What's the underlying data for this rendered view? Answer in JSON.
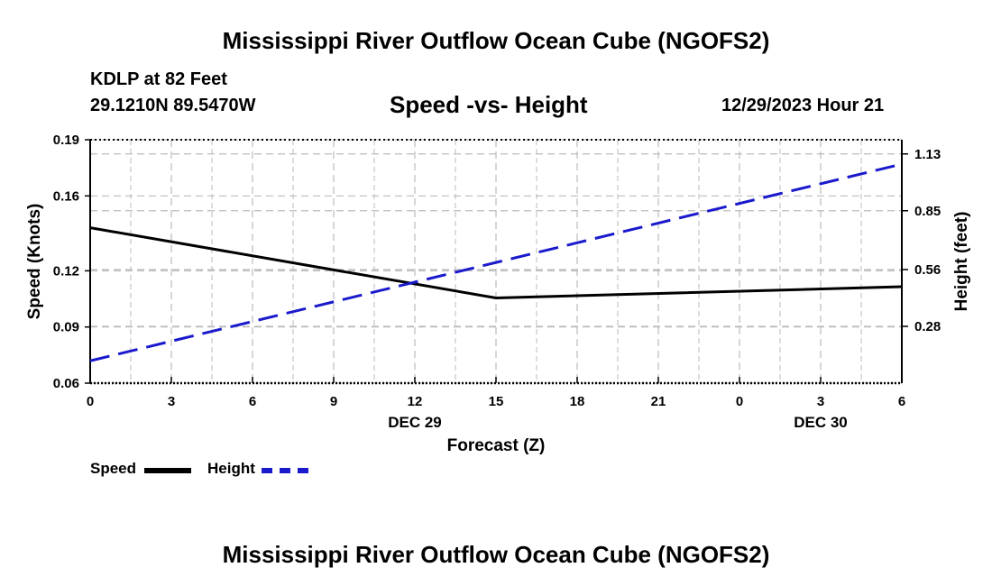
{
  "header": {
    "title": "Mississippi River Outflow Ocean Cube (NGOFS2)",
    "station": "KDLP at 82 Feet",
    "coords": "29.1210N  89.5470W",
    "subtitle": "Speed -vs- Height",
    "datetime": "12/29/2023 Hour 21"
  },
  "footer": {
    "title": "Mississippi River Outflow Ocean Cube (NGOFS2)"
  },
  "legend": {
    "speed_label": "Speed",
    "height_label": "Height"
  },
  "colors": {
    "speed": "#000000",
    "height": "#1a1acc",
    "grid": "#bbbbbb"
  },
  "chart_data": {
    "type": "line",
    "title": "Speed -vs- Height",
    "xlabel": "Forecast (Z)",
    "ylabel": "Speed (Knots)",
    "y2label": "Height (feet)",
    "x_ticks": [
      "0",
      "3",
      "6",
      "9",
      "12",
      "15",
      "18",
      "21",
      "0",
      "3",
      "6"
    ],
    "x_tick_hours": [
      0,
      3,
      6,
      9,
      12,
      15,
      18,
      21,
      24,
      27,
      30
    ],
    "date_labels": [
      {
        "text": "DEC 29",
        "hour": 12
      },
      {
        "text": "DEC 30",
        "hour": 27
      }
    ],
    "xlim": [
      0,
      30
    ],
    "ylim": [
      0.06,
      0.19
    ],
    "y_ticks": [
      0.06,
      0.09,
      0.12,
      0.16,
      0.19
    ],
    "y_tick_labels": [
      "0.06",
      "0.09",
      "0.12",
      "0.16",
      "0.19"
    ],
    "y2lim": [
      0.0,
      1.2
    ],
    "y2_ticks": [
      0.28,
      0.56,
      0.85,
      1.13
    ],
    "y2_tick_labels": [
      "0.28",
      "0.56",
      "0.85",
      "1.13"
    ],
    "series": [
      {
        "name": "Speed",
        "axis": "left",
        "style": "solid",
        "x": [
          0,
          15,
          30
        ],
        "values": [
          0.143,
          0.1055,
          0.1115
        ]
      },
      {
        "name": "Height",
        "axis": "right",
        "style": "dashed",
        "x": [
          0,
          30
        ],
        "values": [
          0.11,
          1.08
        ]
      }
    ]
  }
}
